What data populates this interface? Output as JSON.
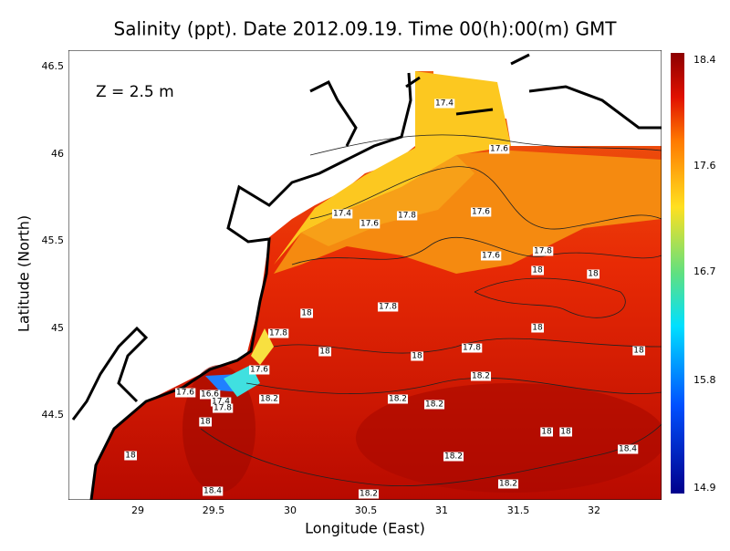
{
  "title": "Salinity (ppt). Date 2012.09.19. Time 00(h):00(m) GMT",
  "annotation": "Z = 2.5 m",
  "x_axis": {
    "label": "Longitude (East)",
    "ticks": [
      "29",
      "29.5",
      "30",
      "30.5",
      "31",
      "31.5",
      "32"
    ]
  },
  "y_axis": {
    "label": "Latitude (North)",
    "ticks": [
      "46.5",
      "46",
      "45.5",
      "45",
      "44.5"
    ]
  },
  "colorbar": {
    "ticks": [
      "18.4",
      "17.6",
      "16.7",
      "15.8",
      "14.9"
    ]
  },
  "contour_labels": [
    "17.4",
    "17.6",
    "17.4",
    "17.6",
    "17.8",
    "17.6",
    "17.6",
    "17.8",
    "18",
    "18",
    "18",
    "17.8",
    "17.8",
    "18",
    "18",
    "18",
    "17.8",
    "18",
    "17.6",
    "18.2",
    "17.6",
    "16.6",
    "17.4",
    "17.8",
    "18.2",
    "18.2",
    "18.2",
    "18",
    "18",
    "18",
    "18.4",
    "18",
    "18.2",
    "18.2",
    "18.4",
    "18.2"
  ]
}
